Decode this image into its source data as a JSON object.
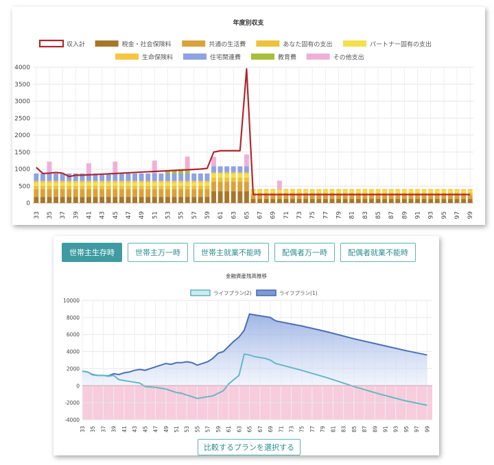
{
  "chart1": {
    "title": "年度別収支",
    "legend_row1": [
      {
        "label": "収入計",
        "color": "#b0262e",
        "kind": "line"
      },
      {
        "label": "税金・社会保険料",
        "color": "#a8762a",
        "kind": "box"
      },
      {
        "label": "共通の生活費",
        "color": "#dba23a",
        "kind": "box"
      },
      {
        "label": "あなた固有の支出",
        "color": "#eec23a",
        "kind": "box"
      },
      {
        "label": "パートナー固有の支出",
        "color": "#f3e04a",
        "kind": "box"
      }
    ],
    "legend_row2": [
      {
        "label": "生命保険料",
        "color": "#f6c640",
        "kind": "box"
      },
      {
        "label": "住宅関連費",
        "color": "#8fa2e3",
        "kind": "box"
      },
      {
        "label": "教育費",
        "color": "#a8bf3c",
        "kind": "box"
      },
      {
        "label": "その他支出",
        "color": "#eeb0d8",
        "kind": "box"
      }
    ],
    "ylim": [
      0,
      4000
    ],
    "yticks": [
      0,
      500,
      1000,
      1500,
      2000,
      2500,
      3000,
      3500,
      4000
    ],
    "xticks": [
      "33",
      "35",
      "37",
      "39",
      "41",
      "43",
      "45",
      "47",
      "49",
      "51",
      "53",
      "55",
      "57",
      "59",
      "61",
      "63",
      "65",
      "67",
      "69",
      "71",
      "73",
      "75",
      "77",
      "79",
      "81",
      "83",
      "85",
      "87",
      "89",
      "91",
      "93",
      "95",
      "97",
      "99"
    ]
  },
  "chart1_data": {
    "type": "bar",
    "stacked": true,
    "categories": [
      "33",
      "34",
      "35",
      "36",
      "37",
      "38",
      "39",
      "40",
      "41",
      "42",
      "43",
      "44",
      "45",
      "46",
      "47",
      "48",
      "49",
      "50",
      "51",
      "52",
      "53",
      "54",
      "55",
      "56",
      "57",
      "58",
      "59",
      "60",
      "61",
      "62",
      "63",
      "64",
      "65",
      "66",
      "67",
      "68",
      "69",
      "70",
      "71",
      "72",
      "73",
      "74",
      "75",
      "76",
      "77",
      "78",
      "79",
      "80",
      "81",
      "82",
      "83",
      "84",
      "85",
      "86",
      "87",
      "88",
      "89",
      "90",
      "91",
      "92",
      "93",
      "94",
      "95",
      "96",
      "97",
      "98",
      "99"
    ],
    "series": [
      {
        "name": "税金・社会保険料",
        "color": "#a8762a",
        "values": [
          180,
          180,
          180,
          180,
          180,
          180,
          180,
          180,
          180,
          180,
          180,
          180,
          180,
          180,
          180,
          180,
          180,
          180,
          180,
          180,
          180,
          180,
          180,
          180,
          180,
          180,
          180,
          350,
          350,
          350,
          350,
          350,
          350,
          120,
          120,
          120,
          120,
          120,
          120,
          120,
          120,
          120,
          120,
          120,
          120,
          120,
          120,
          120,
          120,
          120,
          120,
          120,
          120,
          120,
          120,
          120,
          120,
          120,
          120,
          120,
          120,
          120,
          120,
          120,
          120,
          120,
          120
        ]
      },
      {
        "name": "共通の生活費",
        "color": "#dba23a",
        "values": [
          230,
          230,
          230,
          230,
          230,
          230,
          230,
          230,
          230,
          230,
          230,
          230,
          230,
          230,
          230,
          230,
          230,
          230,
          230,
          230,
          230,
          230,
          230,
          230,
          230,
          230,
          230,
          280,
          280,
          280,
          280,
          280,
          280,
          120,
          120,
          120,
          120,
          120,
          120,
          120,
          120,
          120,
          120,
          120,
          120,
          120,
          120,
          120,
          120,
          120,
          120,
          120,
          120,
          120,
          120,
          120,
          120,
          120,
          120,
          120,
          120,
          120,
          120,
          120,
          120,
          120,
          120
        ]
      },
      {
        "name": "あなた固有の支出",
        "color": "#eec23a",
        "values": [
          100,
          100,
          100,
          100,
          100,
          100,
          100,
          100,
          100,
          100,
          100,
          100,
          100,
          100,
          100,
          100,
          100,
          100,
          100,
          100,
          100,
          100,
          100,
          100,
          100,
          100,
          100,
          120,
          120,
          120,
          120,
          120,
          120,
          70,
          70,
          70,
          70,
          70,
          70,
          70,
          70,
          70,
          70,
          70,
          70,
          70,
          70,
          70,
          70,
          70,
          70,
          70,
          70,
          70,
          70,
          70,
          70,
          70,
          70,
          70,
          70,
          70,
          70,
          70,
          70,
          70,
          70
        ]
      },
      {
        "name": "パートナー固有の支出",
        "color": "#f3e04a",
        "values": [
          80,
          80,
          80,
          80,
          80,
          80,
          80,
          80,
          80,
          80,
          80,
          80,
          80,
          80,
          80,
          80,
          80,
          80,
          80,
          80,
          80,
          80,
          80,
          80,
          80,
          80,
          80,
          110,
          110,
          110,
          110,
          110,
          110,
          60,
          60,
          60,
          60,
          60,
          60,
          60,
          60,
          60,
          60,
          60,
          60,
          60,
          60,
          60,
          60,
          60,
          60,
          60,
          60,
          60,
          60,
          60,
          60,
          60,
          60,
          60,
          60,
          60,
          60,
          60,
          60,
          60,
          60
        ]
      },
      {
        "name": "生命保険料",
        "color": "#f6c640",
        "values": [
          60,
          60,
          60,
          60,
          60,
          60,
          60,
          60,
          60,
          60,
          60,
          60,
          60,
          60,
          60,
          60,
          60,
          60,
          60,
          60,
          60,
          60,
          60,
          60,
          60,
          60,
          60,
          40,
          40,
          40,
          40,
          40,
          40,
          40,
          40,
          40,
          40,
          40,
          40,
          40,
          40,
          40,
          40,
          40,
          40,
          40,
          40,
          40,
          40,
          40,
          40,
          40,
          40,
          40,
          40,
          40,
          40,
          40,
          40,
          40,
          40,
          40,
          40,
          40,
          40,
          40,
          40
        ]
      },
      {
        "name": "住宅関連費",
        "color": "#8fa2e3",
        "values": [
          220,
          220,
          220,
          220,
          220,
          220,
          220,
          220,
          220,
          220,
          220,
          220,
          220,
          220,
          220,
          220,
          220,
          220,
          220,
          220,
          220,
          220,
          220,
          220,
          220,
          220,
          220,
          180,
          180,
          180,
          180,
          180,
          180,
          0,
          0,
          0,
          0,
          0,
          0,
          0,
          0,
          0,
          0,
          0,
          0,
          0,
          0,
          0,
          0,
          0,
          0,
          0,
          0,
          0,
          0,
          0,
          0,
          0,
          0,
          0,
          0,
          0,
          0,
          0,
          0,
          0,
          0
        ]
      },
      {
        "name": "教育費",
        "color": "#a8bf3c",
        "values": [
          0,
          0,
          0,
          0,
          0,
          0,
          0,
          0,
          0,
          0,
          0,
          0,
          0,
          0,
          0,
          0,
          0,
          0,
          0,
          0,
          100,
          100,
          100,
          100,
          0,
          0,
          0,
          0,
          0,
          0,
          0,
          0,
          0,
          0,
          0,
          0,
          0,
          0,
          0,
          0,
          0,
          0,
          0,
          0,
          0,
          0,
          0,
          0,
          0,
          0,
          0,
          0,
          0,
          0,
          0,
          0,
          0,
          0,
          0,
          0,
          0,
          0,
          0,
          0,
          0,
          0,
          0
        ]
      },
      {
        "name": "その他支出",
        "color": "#eeb0d8",
        "values": [
          0,
          0,
          350,
          0,
          0,
          0,
          0,
          0,
          300,
          0,
          0,
          0,
          350,
          0,
          0,
          0,
          0,
          0,
          380,
          0,
          0,
          0,
          0,
          400,
          0,
          0,
          0,
          280,
          0,
          0,
          0,
          0,
          350,
          0,
          0,
          0,
          0,
          250,
          0,
          0,
          0,
          0,
          0,
          0,
          0,
          0,
          0,
          0,
          0,
          0,
          0,
          0,
          0,
          0,
          0,
          0,
          0,
          0,
          0,
          0,
          0,
          0,
          0,
          0,
          0,
          0,
          0
        ]
      }
    ],
    "line": {
      "name": "収入計",
      "color": "#b0262e",
      "values": [
        1050,
        870,
        880,
        900,
        880,
        780,
        820,
        820,
        830,
        840,
        850,
        860,
        870,
        880,
        890,
        900,
        910,
        920,
        930,
        940,
        950,
        960,
        970,
        980,
        990,
        1000,
        1020,
        1500,
        1540,
        1540,
        1540,
        1540,
        3950,
        250,
        250,
        250,
        250,
        250,
        250,
        250,
        250,
        250,
        250,
        250,
        250,
        250,
        250,
        250,
        250,
        250,
        250,
        250,
        250,
        250,
        250,
        250,
        250,
        250,
        250,
        250,
        250,
        250,
        250,
        250,
        250,
        250,
        250
      ]
    }
  },
  "tabs": {
    "items": [
      {
        "label": "世帯主生存時",
        "active": true
      },
      {
        "label": "世帯主万一時",
        "active": false
      },
      {
        "label": "世帯主就業不能時",
        "active": false
      },
      {
        "label": "配偶者万一時",
        "active": false
      },
      {
        "label": "配偶者就業不能時",
        "active": false
      }
    ]
  },
  "chart2": {
    "title": "金融資産残高推移",
    "legend": [
      {
        "label": "ライフプラン(2)",
        "color": "#63b8c4"
      },
      {
        "label": "ライフプラン(1)",
        "color": "#4a6fb5"
      }
    ],
    "ylim": [
      -4000,
      10000
    ],
    "yticks": [
      -4000,
      -2000,
      0,
      2000,
      4000,
      6000,
      8000,
      10000
    ],
    "xticks": [
      "33",
      "35",
      "37",
      "39",
      "41",
      "43",
      "45",
      "47",
      "49",
      "51",
      "53",
      "55",
      "57",
      "59",
      "61",
      "63",
      "65",
      "67",
      "69",
      "71",
      "73",
      "75",
      "77",
      "79",
      "81",
      "83",
      "85",
      "87",
      "89",
      "91",
      "93",
      "95",
      "97",
      "99"
    ],
    "compare_button": "比較するプランを選択する"
  },
  "chart2_data": {
    "type": "area",
    "x": [
      33,
      34,
      35,
      36,
      37,
      38,
      39,
      40,
      41,
      42,
      43,
      44,
      45,
      46,
      47,
      48,
      49,
      50,
      51,
      52,
      53,
      54,
      55,
      56,
      57,
      58,
      59,
      60,
      61,
      62,
      63,
      64,
      65,
      66,
      67,
      68,
      69,
      70,
      75,
      80,
      85,
      90,
      95,
      99
    ],
    "series": [
      {
        "name": "ライフプラン(1)",
        "color": "#4a6fb5",
        "values": [
          1700,
          1600,
          1300,
          1200,
          1200,
          1150,
          1400,
          1300,
          1500,
          1600,
          1800,
          1900,
          1800,
          2000,
          2200,
          2400,
          2600,
          2500,
          2700,
          2700,
          2800,
          2700,
          2400,
          2600,
          2800,
          3200,
          3800,
          4000,
          4600,
          5200,
          5700,
          6500,
          8400,
          8300,
          8200,
          8100,
          8000,
          7600,
          7000,
          6300,
          5500,
          4800,
          4100,
          3600
        ]
      },
      {
        "name": "ライフプラン(2)",
        "color": "#63b8c4",
        "values": [
          1700,
          1600,
          1250,
          1200,
          1200,
          1100,
          1200,
          700,
          600,
          500,
          400,
          300,
          -100,
          -150,
          -200,
          -300,
          -400,
          -600,
          -800,
          -900,
          -1100,
          -1300,
          -1500,
          -1400,
          -1300,
          -1200,
          -900,
          -600,
          200,
          700,
          1200,
          3700,
          3600,
          3400,
          3300,
          3200,
          3000,
          2600,
          1800,
          900,
          -100,
          -1000,
          -1800,
          -2300
        ]
      }
    ]
  }
}
